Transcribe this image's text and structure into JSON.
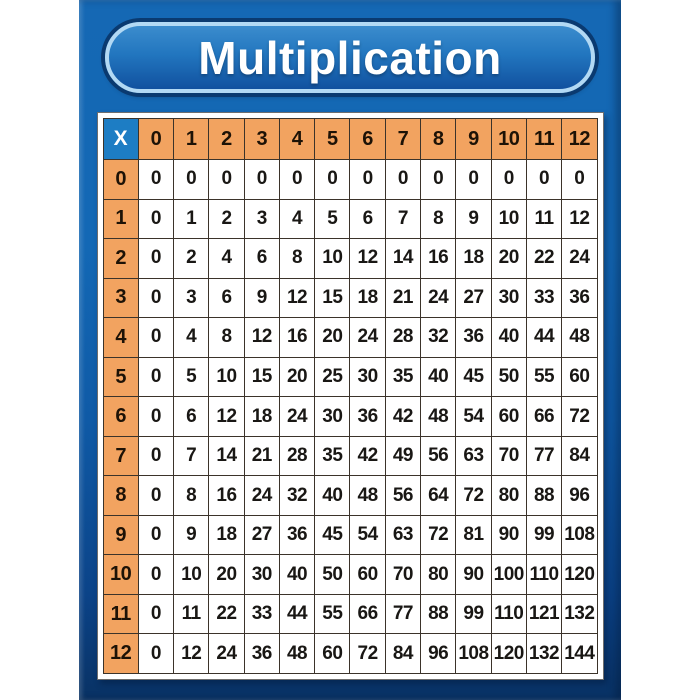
{
  "poster": {
    "title": "Multiplication"
  },
  "colors": {
    "poster_blue_top": "#1568b4",
    "poster_blue_mid": "#0f5aa6",
    "poster_blue_bottom": "#093264",
    "title_fill_top": "#3b8ccd",
    "title_fill_bottom": "#11519f",
    "title_border": "#b2d9f4",
    "title_ring": "#0a3a70",
    "header_orange": "#f2a360",
    "corner_blue": "#1d7dc4",
    "grid_line": "#3b332a",
    "cell_bg": "#ffffff",
    "header_text": "#1d1206",
    "cell_text": "#191714"
  },
  "chart_data": {
    "type": "table",
    "title": "Multiplication",
    "corner_label": "X",
    "column_headers": [
      "0",
      "1",
      "2",
      "3",
      "4",
      "5",
      "6",
      "7",
      "8",
      "9",
      "10",
      "11",
      "12"
    ],
    "row_headers": [
      "0",
      "1",
      "2",
      "3",
      "4",
      "5",
      "6",
      "7",
      "8",
      "9",
      "10",
      "11",
      "12"
    ],
    "rows": [
      [
        0,
        0,
        0,
        0,
        0,
        0,
        0,
        0,
        0,
        0,
        0,
        0,
        0
      ],
      [
        0,
        1,
        2,
        3,
        4,
        5,
        6,
        7,
        8,
        9,
        10,
        11,
        12
      ],
      [
        0,
        2,
        4,
        6,
        8,
        10,
        12,
        14,
        16,
        18,
        20,
        22,
        24
      ],
      [
        0,
        3,
        6,
        9,
        12,
        15,
        18,
        21,
        24,
        27,
        30,
        33,
        36
      ],
      [
        0,
        4,
        8,
        12,
        16,
        20,
        24,
        28,
        32,
        36,
        40,
        44,
        48
      ],
      [
        0,
        5,
        10,
        15,
        20,
        25,
        30,
        35,
        40,
        45,
        50,
        55,
        60
      ],
      [
        0,
        6,
        12,
        18,
        24,
        30,
        36,
        42,
        48,
        54,
        60,
        66,
        72
      ],
      [
        0,
        7,
        14,
        21,
        28,
        35,
        42,
        49,
        56,
        63,
        70,
        77,
        84
      ],
      [
        0,
        8,
        16,
        24,
        32,
        40,
        48,
        56,
        64,
        72,
        80,
        88,
        96
      ],
      [
        0,
        9,
        18,
        27,
        36,
        45,
        54,
        63,
        72,
        81,
        90,
        99,
        108
      ],
      [
        0,
        10,
        20,
        30,
        40,
        50,
        60,
        70,
        80,
        90,
        100,
        110,
        120
      ],
      [
        0,
        11,
        22,
        33,
        44,
        55,
        66,
        77,
        88,
        99,
        110,
        121,
        132
      ],
      [
        0,
        12,
        24,
        36,
        48,
        60,
        72,
        84,
        96,
        108,
        120,
        132,
        144
      ]
    ]
  }
}
